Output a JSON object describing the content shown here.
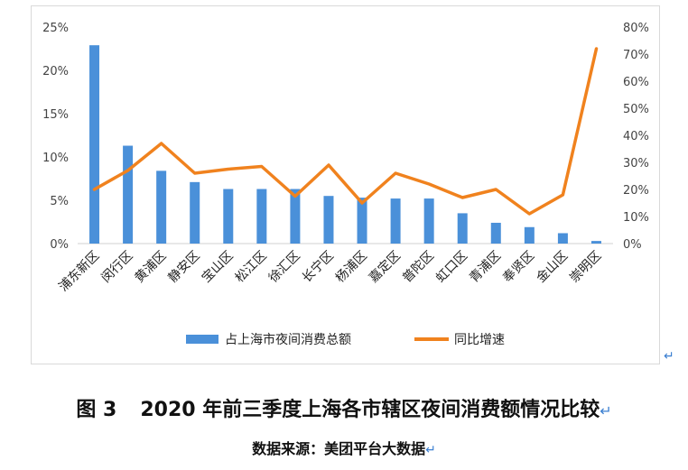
{
  "figure": {
    "caption_number": "图 3",
    "caption_title": "2020 年前三季度上海各市辖区夜间消费额情况比较",
    "source": "数据来源：美团平台大数据",
    "return_mark": "↵"
  },
  "chart_data": {
    "type": "bar",
    "combo": "bar+line, dual axis",
    "categories": [
      "浦东新区",
      "闵行区",
      "黄浦区",
      "静安区",
      "宝山区",
      "松江区",
      "徐汇区",
      "长宁区",
      "杨浦区",
      "嘉定区",
      "普陀区",
      "虹口区",
      "青浦区",
      "奉贤区",
      "金山区",
      "崇明区"
    ],
    "series": [
      {
        "name": "占上海市夜间消费总额",
        "type": "bar",
        "axis": "left",
        "color": "#4a90d9",
        "values": [
          22.9,
          11.3,
          8.4,
          7.1,
          6.3,
          6.3,
          6.3,
          5.5,
          5.3,
          5.2,
          5.2,
          3.5,
          2.4,
          1.9,
          1.2,
          0.3
        ]
      },
      {
        "name": "同比增速",
        "type": "line",
        "axis": "right",
        "color": "#f0821e",
        "values": [
          20,
          27,
          37,
          26,
          27.5,
          28.5,
          17.5,
          29,
          15,
          26,
          22,
          17,
          20,
          11,
          18,
          72
        ]
      }
    ],
    "y_left": {
      "ylim": [
        0,
        25
      ],
      "ticks": [
        "0%",
        "5%",
        "10%",
        "15%",
        "20%",
        "25%"
      ],
      "tick_values": [
        0,
        5,
        10,
        15,
        20,
        25
      ]
    },
    "y_right": {
      "ylim": [
        0,
        80
      ],
      "ticks": [
        "0%",
        "10%",
        "20%",
        "30%",
        "40%",
        "50%",
        "60%",
        "70%",
        "80%"
      ],
      "tick_values": [
        0,
        10,
        20,
        30,
        40,
        50,
        60,
        70,
        80
      ]
    },
    "grid": false,
    "legend": "bottom"
  }
}
